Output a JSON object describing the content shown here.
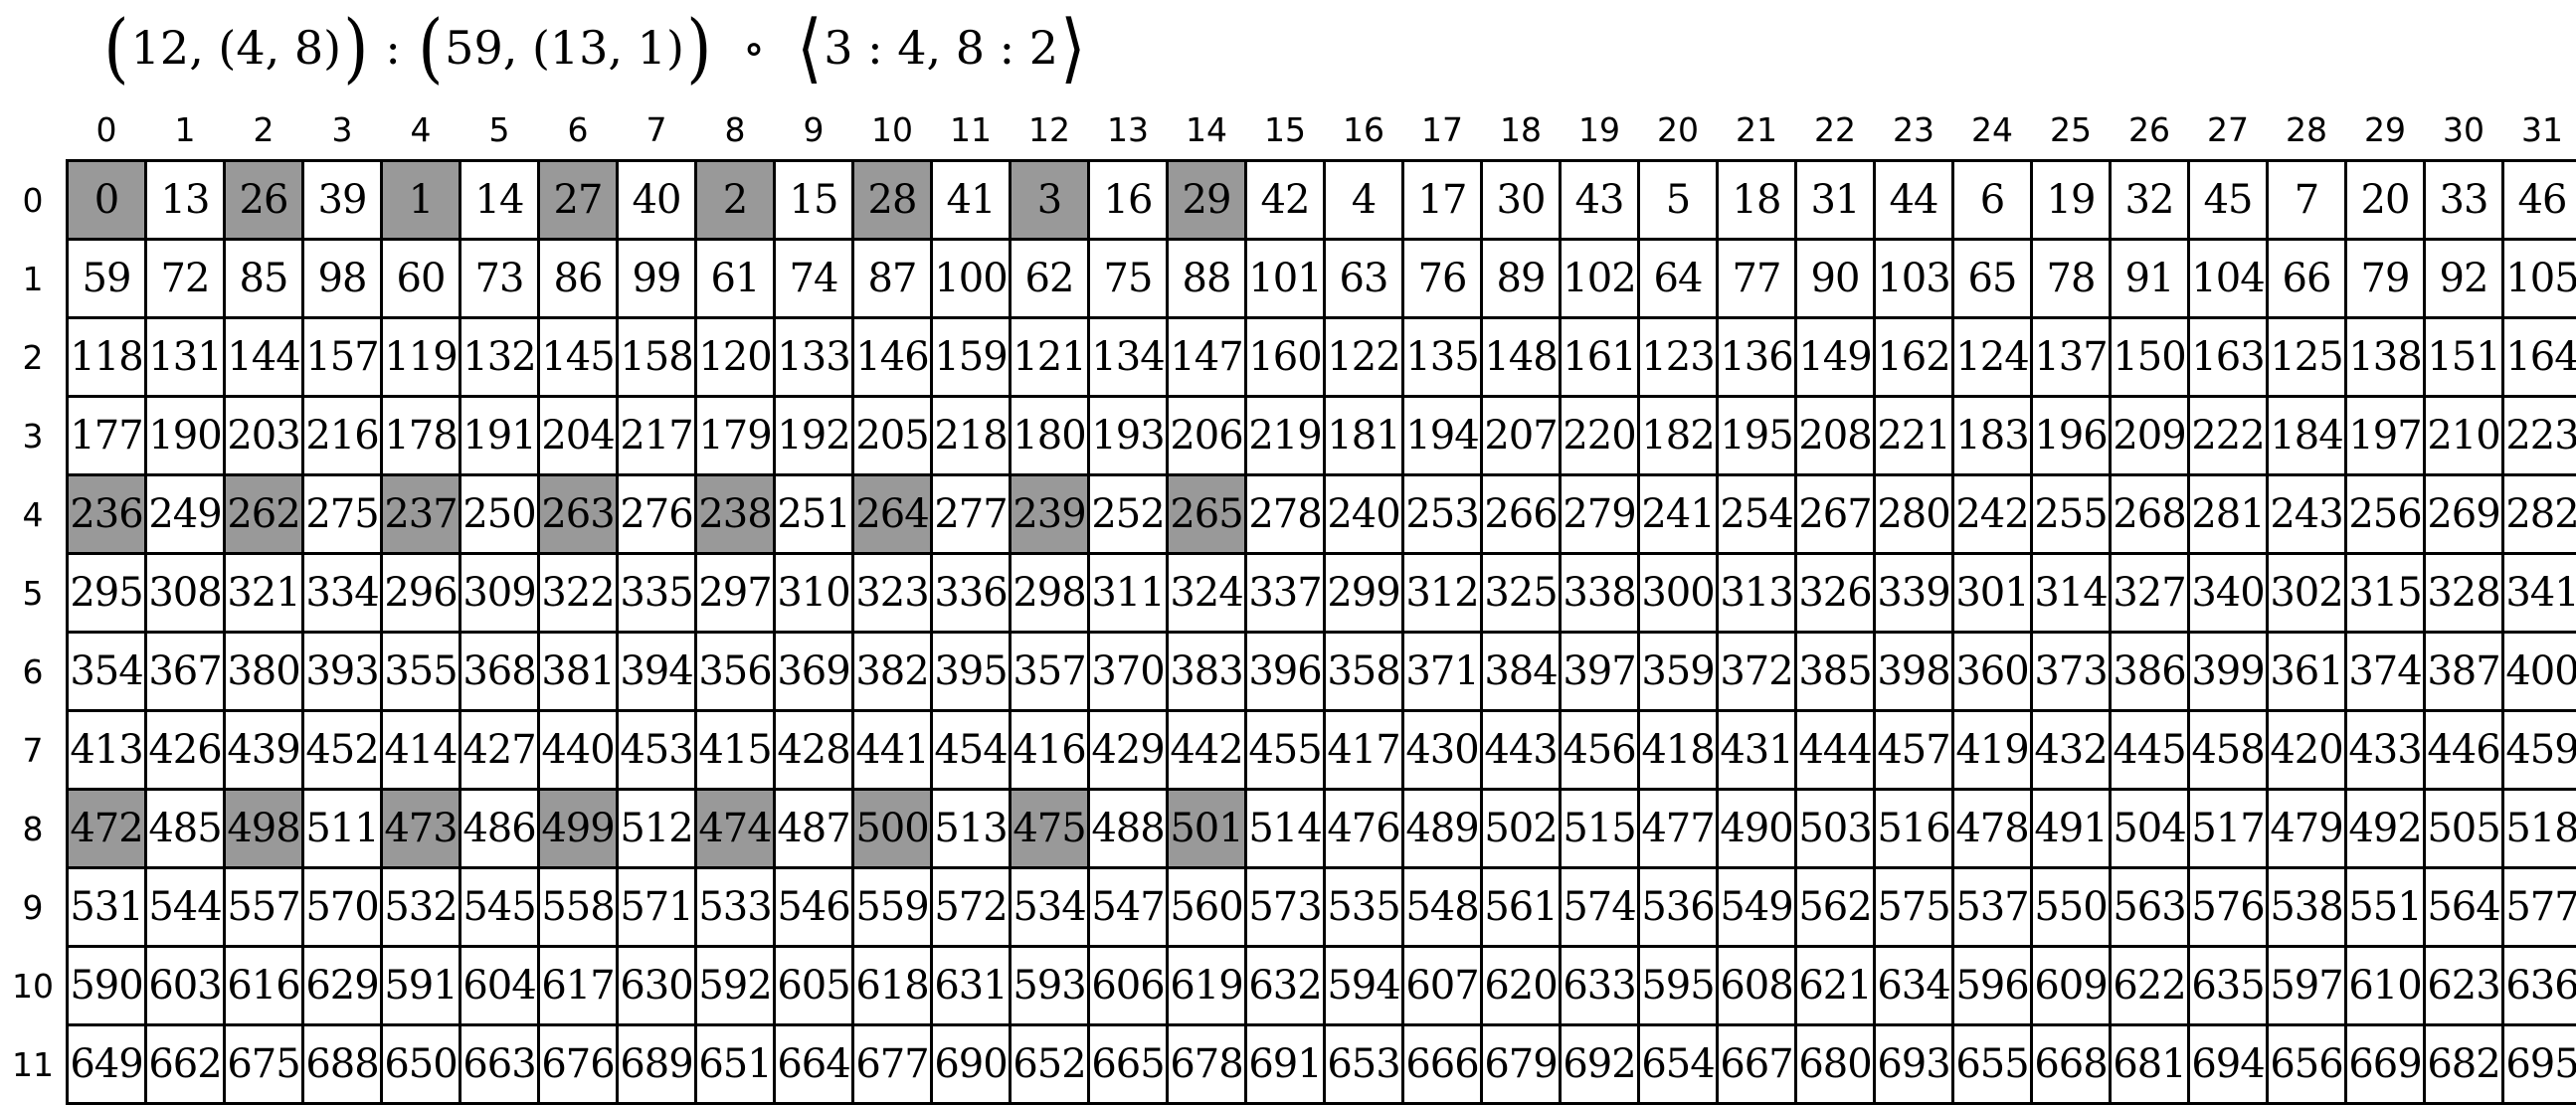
{
  "title": {
    "text": "(12, (4, 8)) : (59, (13, 1)) ∘ ⟨3 : 4, 8 : 2⟩",
    "segments": [
      {
        "text": "(",
        "big": true
      },
      {
        "text": "12, (4, 8)",
        "big": false
      },
      {
        "text": ")",
        "big": true
      },
      {
        "text": " : ",
        "big": false
      },
      {
        "text": "(",
        "big": true
      },
      {
        "text": "59, (13, 1)",
        "big": false
      },
      {
        "text": ")",
        "big": true
      },
      {
        "text": "  ∘  ",
        "big": false
      },
      {
        "text": "⟨",
        "big": true
      },
      {
        "text": "3 : 4, 8 : 2",
        "big": false
      },
      {
        "text": "⟩",
        "big": true
      }
    ]
  },
  "grid": {
    "column_headers": [
      "0",
      "1",
      "2",
      "3",
      "4",
      "5",
      "6",
      "7",
      "8",
      "9",
      "10",
      "11",
      "12",
      "13",
      "14",
      "15",
      "16",
      "17",
      "18",
      "19",
      "20",
      "21",
      "22",
      "23",
      "24",
      "25",
      "26",
      "27",
      "28",
      "29",
      "30",
      "31"
    ],
    "row_headers": [
      "0",
      "1",
      "2",
      "3",
      "4",
      "5",
      "6",
      "7",
      "8",
      "9",
      "10",
      "11"
    ],
    "rows": [
      [
        0,
        13,
        26,
        39,
        1,
        14,
        27,
        40,
        2,
        15,
        28,
        41,
        3,
        16,
        29,
        42,
        4,
        17,
        30,
        43,
        5,
        18,
        31,
        44,
        6,
        19,
        32,
        45,
        7,
        20,
        33,
        46
      ],
      [
        59,
        72,
        85,
        98,
        60,
        73,
        86,
        99,
        61,
        74,
        87,
        100,
        62,
        75,
        88,
        101,
        63,
        76,
        89,
        102,
        64,
        77,
        90,
        103,
        65,
        78,
        91,
        104,
        66,
        79,
        92,
        105
      ],
      [
        118,
        131,
        144,
        157,
        119,
        132,
        145,
        158,
        120,
        133,
        146,
        159,
        121,
        134,
        147,
        160,
        122,
        135,
        148,
        161,
        123,
        136,
        149,
        162,
        124,
        137,
        150,
        163,
        125,
        138,
        151,
        164
      ],
      [
        177,
        190,
        203,
        216,
        178,
        191,
        204,
        217,
        179,
        192,
        205,
        218,
        180,
        193,
        206,
        219,
        181,
        194,
        207,
        220,
        182,
        195,
        208,
        221,
        183,
        196,
        209,
        222,
        184,
        197,
        210,
        223
      ],
      [
        236,
        249,
        262,
        275,
        237,
        250,
        263,
        276,
        238,
        251,
        264,
        277,
        239,
        252,
        265,
        278,
        240,
        253,
        266,
        279,
        241,
        254,
        267,
        280,
        242,
        255,
        268,
        281,
        243,
        256,
        269,
        282
      ],
      [
        295,
        308,
        321,
        334,
        296,
        309,
        322,
        335,
        297,
        310,
        323,
        336,
        298,
        311,
        324,
        337,
        299,
        312,
        325,
        338,
        300,
        313,
        326,
        339,
        301,
        314,
        327,
        340,
        302,
        315,
        328,
        341
      ],
      [
        354,
        367,
        380,
        393,
        355,
        368,
        381,
        394,
        356,
        369,
        382,
        395,
        357,
        370,
        383,
        396,
        358,
        371,
        384,
        397,
        359,
        372,
        385,
        398,
        360,
        373,
        386,
        399,
        361,
        374,
        387,
        400
      ],
      [
        413,
        426,
        439,
        452,
        414,
        427,
        440,
        453,
        415,
        428,
        441,
        454,
        416,
        429,
        442,
        455,
        417,
        430,
        443,
        456,
        418,
        431,
        444,
        457,
        419,
        432,
        445,
        458,
        420,
        433,
        446,
        459
      ],
      [
        472,
        485,
        498,
        511,
        473,
        486,
        499,
        512,
        474,
        487,
        500,
        513,
        475,
        488,
        501,
        514,
        476,
        489,
        502,
        515,
        477,
        490,
        503,
        516,
        478,
        491,
        504,
        517,
        479,
        492,
        505,
        518
      ],
      [
        531,
        544,
        557,
        570,
        532,
        545,
        558,
        571,
        533,
        546,
        559,
        572,
        534,
        547,
        560,
        573,
        535,
        548,
        561,
        574,
        536,
        549,
        562,
        575,
        537,
        550,
        563,
        576,
        538,
        551,
        564,
        577
      ],
      [
        590,
        603,
        616,
        629,
        591,
        604,
        617,
        630,
        592,
        605,
        618,
        631,
        593,
        606,
        619,
        632,
        594,
        607,
        620,
        633,
        595,
        608,
        621,
        634,
        596,
        609,
        622,
        635,
        597,
        610,
        623,
        636
      ],
      [
        649,
        662,
        675,
        688,
        650,
        663,
        676,
        689,
        651,
        664,
        677,
        690,
        652,
        665,
        678,
        691,
        653,
        666,
        679,
        692,
        654,
        667,
        680,
        693,
        655,
        668,
        681,
        694,
        656,
        669,
        682,
        695
      ]
    ],
    "highlight": {
      "rows": [
        0,
        4,
        8
      ],
      "cols": [
        0,
        2,
        4,
        6,
        8,
        10,
        12,
        14
      ]
    },
    "colors": {
      "highlight_fill": "#999999",
      "cell_fill": "#ffffff",
      "border": "#000000",
      "text": "#000000"
    }
  }
}
